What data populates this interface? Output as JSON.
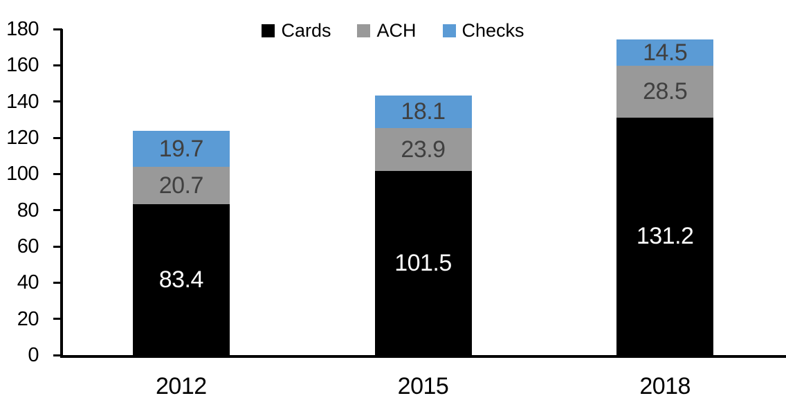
{
  "chart_data": {
    "type": "bar",
    "stacked": true,
    "title": "",
    "xlabel": "",
    "ylabel": "",
    "categories": [
      "2012",
      "2015",
      "2018"
    ],
    "series": [
      {
        "name": "Cards",
        "color": "#000000",
        "label_color": "#ffffff",
        "values": [
          83.4,
          101.5,
          131.2
        ]
      },
      {
        "name": "ACH",
        "color": "#999999",
        "label_color": "#404040",
        "values": [
          20.7,
          23.9,
          28.5
        ]
      },
      {
        "name": "Checks",
        "color": "#5b9bd5",
        "label_color": "#404040",
        "values": [
          19.7,
          18.1,
          14.5
        ]
      }
    ],
    "ylim": [
      0,
      180
    ],
    "yticks": [
      0,
      20,
      40,
      60,
      80,
      100,
      120,
      140,
      160,
      180
    ],
    "grid": false,
    "legend_position": "top",
    "axis_color": "#000000",
    "background_color": "#ffffff"
  }
}
